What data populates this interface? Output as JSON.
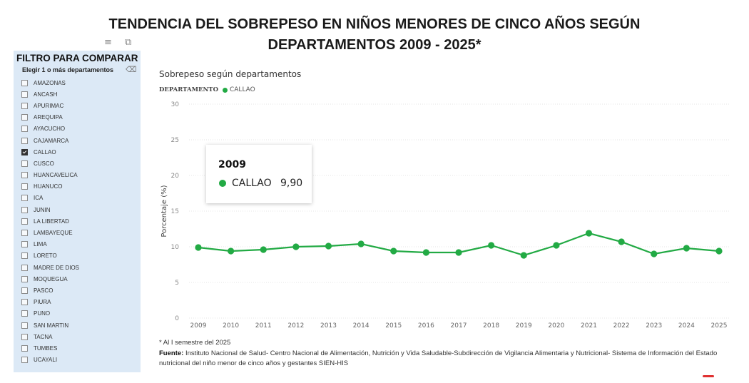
{
  "page": {
    "title_line1": "TENDENCIA DEL SOBREPESO EN NIÑOS MENORES DE CINCO AÑOS SEGÚN",
    "title_line2": "DEPARTAMENTOS 2009 - 2025*",
    "toolbar_icons": [
      "filter-icon",
      "expand-icon"
    ]
  },
  "filter": {
    "title": "FILTRO PARA COMPARAR",
    "subtitle": "Elegir 1 o más departamentos",
    "items": [
      {
        "label": "AMAZONAS",
        "checked": false
      },
      {
        "label": "ANCASH",
        "checked": false
      },
      {
        "label": "APURIMAC",
        "checked": false
      },
      {
        "label": "AREQUIPA",
        "checked": false
      },
      {
        "label": "AYACUCHO",
        "checked": false
      },
      {
        "label": "CAJAMARCA",
        "checked": false
      },
      {
        "label": "CALLAO",
        "checked": true
      },
      {
        "label": "CUSCO",
        "checked": false
      },
      {
        "label": "HUANCAVELICA",
        "checked": false
      },
      {
        "label": "HUANUCO",
        "checked": false
      },
      {
        "label": "ICA",
        "checked": false
      },
      {
        "label": "JUNIN",
        "checked": false
      },
      {
        "label": "LA LIBERTAD",
        "checked": false
      },
      {
        "label": "LAMBAYEQUE",
        "checked": false
      },
      {
        "label": "LIMA",
        "checked": false
      },
      {
        "label": "LORETO",
        "checked": false
      },
      {
        "label": "MADRE DE DIOS",
        "checked": false
      },
      {
        "label": "MOQUEGUA",
        "checked": false
      },
      {
        "label": "PASCO",
        "checked": false
      },
      {
        "label": "PIURA",
        "checked": false
      },
      {
        "label": "PUNO",
        "checked": false
      },
      {
        "label": "SAN MARTIN",
        "checked": false
      },
      {
        "label": "TACNA",
        "checked": false
      },
      {
        "label": "TUMBES",
        "checked": false
      },
      {
        "label": "UCAYALI",
        "checked": false
      }
    ]
  },
  "chart": {
    "title": "Sobrepeso según departamentos",
    "legend_title": "DEPARTAMENTO",
    "series_color": "#22aa44"
  },
  "tooltip": {
    "title": "2009",
    "series": "CALLAO",
    "value": "9,90"
  },
  "footnote": "* Al I semestre del 2025",
  "source_label": "Fuente:",
  "source_text": " Instituto Nacional de Salud- Centro Nacional de Alimentación, Nutrición y Vida Saludable-Subdirección de Vigilancia Alimentaria y Nutricional- Sistema de Información del Estado nutricional del niño menor de cinco años y gestantes SIEN-HIS",
  "chart_data": {
    "type": "line",
    "title": "Sobrepeso según departamentos",
    "xlabel": "",
    "ylabel": "Porcentaje (%)",
    "ylim": [
      0,
      30
    ],
    "yticks": [
      0,
      5,
      10,
      15,
      20,
      25,
      30
    ],
    "grid": true,
    "legend_title": "DEPARTAMENTO",
    "legend_position": "top-left",
    "x": [
      "2009",
      "2010",
      "2011",
      "2012",
      "2013",
      "2014",
      "2015",
      "2016",
      "2017",
      "2018",
      "2019",
      "2020",
      "2021",
      "2022",
      "2023",
      "2024",
      "2025"
    ],
    "series": [
      {
        "name": "CALLAO",
        "color": "#22aa44",
        "values": [
          9.9,
          9.4,
          9.6,
          10.0,
          10.1,
          10.4,
          9.4,
          9.2,
          9.2,
          10.2,
          8.8,
          10.2,
          11.9,
          10.7,
          9.0,
          9.8,
          9.4
        ]
      }
    ]
  }
}
